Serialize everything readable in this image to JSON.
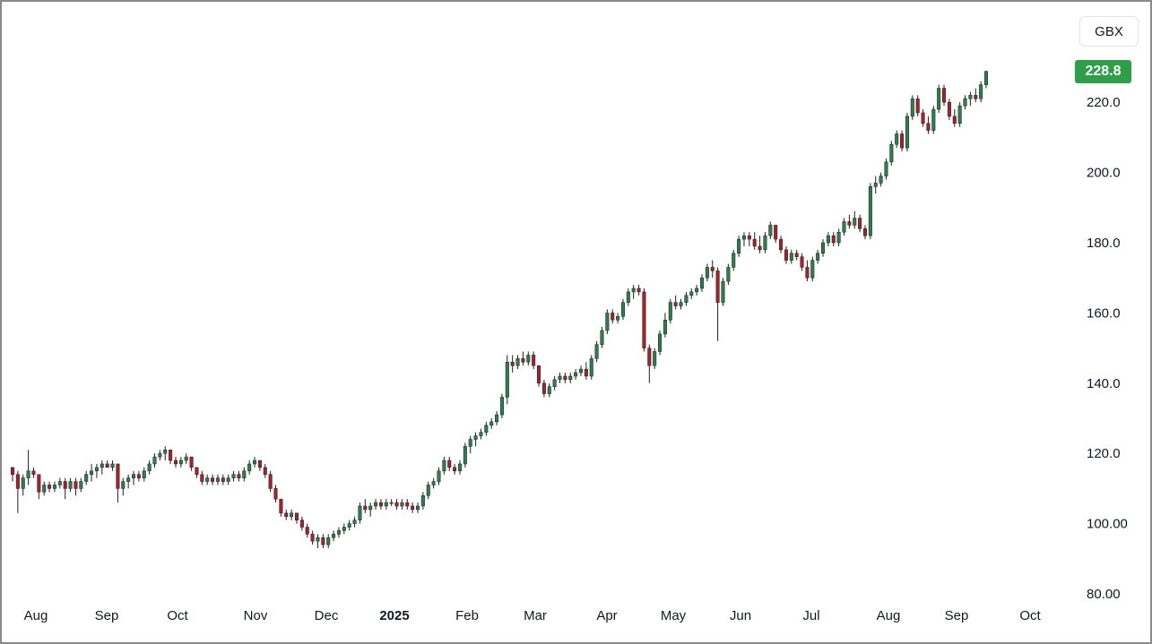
{
  "currency": "GBX",
  "last_price": "228.8",
  "colors": {
    "up": "#2e7d4f",
    "down": "#a3222b",
    "last_bg": "#2e9e48",
    "axis_text": "#131722"
  },
  "chart_data": {
    "type": "candlestick",
    "title": "",
    "xlabel": "",
    "ylabel": "",
    "ylim": [
      80,
      235
    ],
    "y_ticks": [
      "220.0",
      "200.0",
      "180.0",
      "160.0",
      "140.0",
      "120.0",
      "100.00",
      "80.00"
    ],
    "x_ticks": [
      "Aug",
      "Sep",
      "Oct",
      "Nov",
      "Dec",
      "2025",
      "Feb",
      "Mar",
      "Apr",
      "May",
      "Jun",
      "Jul",
      "Aug",
      "Sep",
      "Oct"
    ],
    "bold_tick": "2025",
    "series": [
      {
        "values": [
          [
            116,
            116,
            112,
            114
          ],
          [
            114,
            115,
            103,
            110
          ],
          [
            110,
            114,
            108,
            113
          ],
          [
            113,
            121,
            111,
            115
          ],
          [
            115,
            116,
            113,
            114
          ],
          [
            114,
            114,
            107,
            109
          ],
          [
            109,
            112,
            108,
            111
          ],
          [
            111,
            112,
            109,
            110
          ],
          [
            110,
            112,
            109,
            111
          ],
          [
            111,
            113,
            110,
            112
          ],
          [
            112,
            113,
            107,
            110
          ],
          [
            110,
            113,
            109,
            112
          ],
          [
            112,
            113,
            108,
            110
          ],
          [
            110,
            113,
            109,
            112
          ],
          [
            112,
            115,
            111,
            114
          ],
          [
            114,
            117,
            112,
            115
          ],
          [
            115,
            117,
            113,
            116
          ],
          [
            116,
            118,
            114,
            117
          ],
          [
            117,
            118,
            116,
            116
          ],
          [
            116,
            118,
            115,
            117
          ],
          [
            117,
            117,
            106,
            110
          ],
          [
            110,
            113,
            108,
            112
          ],
          [
            112,
            114,
            110,
            113
          ],
          [
            113,
            115,
            111,
            114
          ],
          [
            114,
            115,
            112,
            113
          ],
          [
            113,
            116,
            112,
            115
          ],
          [
            115,
            118,
            114,
            117
          ],
          [
            117,
            120,
            116,
            119
          ],
          [
            119,
            121,
            118,
            120
          ],
          [
            120,
            122,
            118,
            121
          ],
          [
            121,
            121,
            117,
            118
          ],
          [
            118,
            119,
            116,
            117
          ],
          [
            117,
            119,
            116,
            118
          ],
          [
            118,
            120,
            117,
            119
          ],
          [
            119,
            119,
            115,
            116
          ],
          [
            116,
            116,
            113,
            114
          ],
          [
            114,
            115,
            111,
            112
          ],
          [
            112,
            114,
            111,
            113
          ],
          [
            113,
            114,
            111,
            112
          ],
          [
            112,
            114,
            111,
            113
          ],
          [
            113,
            114,
            111,
            112
          ],
          [
            112,
            114,
            111,
            113
          ],
          [
            113,
            115,
            112,
            114
          ],
          [
            114,
            115,
            112,
            113
          ],
          [
            113,
            116,
            112,
            115
          ],
          [
            115,
            118,
            114,
            117
          ],
          [
            117,
            119,
            116,
            118
          ],
          [
            118,
            118,
            115,
            116
          ],
          [
            116,
            117,
            113,
            114
          ],
          [
            114,
            115,
            109,
            110
          ],
          [
            110,
            111,
            106,
            107
          ],
          [
            107,
            107,
            102,
            103
          ],
          [
            103,
            104,
            101,
            102
          ],
          [
            102,
            104,
            101,
            103
          ],
          [
            103,
            103,
            100,
            101
          ],
          [
            101,
            102,
            98,
            99
          ],
          [
            99,
            100,
            96,
            97
          ],
          [
            97,
            98,
            94,
            95
          ],
          [
            95,
            97,
            93,
            96
          ],
          [
            96,
            97,
            93,
            94
          ],
          [
            94,
            97,
            93,
            96
          ],
          [
            96,
            98,
            95,
            97
          ],
          [
            97,
            99,
            96,
            98
          ],
          [
            98,
            100,
            97,
            99
          ],
          [
            99,
            101,
            98,
            100
          ],
          [
            100,
            102,
            99,
            101
          ],
          [
            101,
            106,
            100,
            105
          ],
          [
            105,
            107,
            103,
            104
          ],
          [
            104,
            106,
            102,
            105
          ],
          [
            105,
            107,
            104,
            106
          ],
          [
            106,
            107,
            104,
            105
          ],
          [
            105,
            107,
            104,
            106
          ],
          [
            106,
            107,
            105,
            106
          ],
          [
            106,
            107,
            104,
            105
          ],
          [
            105,
            107,
            104,
            106
          ],
          [
            106,
            107,
            104,
            105
          ],
          [
            105,
            106,
            103,
            104
          ],
          [
            104,
            106,
            103,
            105
          ],
          [
            105,
            109,
            104,
            108
          ],
          [
            108,
            112,
            107,
            111
          ],
          [
            111,
            113,
            110,
            112
          ],
          [
            112,
            116,
            111,
            115
          ],
          [
            115,
            119,
            114,
            118
          ],
          [
            118,
            119,
            115,
            116
          ],
          [
            116,
            117,
            114,
            115
          ],
          [
            115,
            118,
            114,
            117
          ],
          [
            117,
            123,
            116,
            122
          ],
          [
            122,
            125,
            120,
            124
          ],
          [
            124,
            126,
            122,
            125
          ],
          [
            125,
            127,
            124,
            126
          ],
          [
            126,
            129,
            125,
            128
          ],
          [
            128,
            130,
            127,
            129
          ],
          [
            129,
            132,
            128,
            131
          ],
          [
            131,
            137,
            130,
            136
          ],
          [
            136,
            148,
            134,
            146
          ],
          [
            146,
            148,
            143,
            145
          ],
          [
            145,
            148,
            144,
            147
          ],
          [
            147,
            149,
            145,
            146
          ],
          [
            146,
            149,
            145,
            148
          ],
          [
            148,
            149,
            144,
            145
          ],
          [
            145,
            145,
            139,
            140
          ],
          [
            140,
            141,
            136,
            137
          ],
          [
            137,
            140,
            136,
            139
          ],
          [
            139,
            142,
            138,
            141
          ],
          [
            141,
            143,
            140,
            142
          ],
          [
            142,
            143,
            140,
            141
          ],
          [
            141,
            143,
            140,
            142
          ],
          [
            142,
            144,
            141,
            143
          ],
          [
            143,
            145,
            142,
            144
          ],
          [
            144,
            146,
            141,
            142
          ],
          [
            142,
            148,
            141,
            147
          ],
          [
            147,
            152,
            146,
            151
          ],
          [
            151,
            156,
            150,
            155
          ],
          [
            155,
            161,
            154,
            160
          ],
          [
            160,
            161,
            157,
            158
          ],
          [
            158,
            160,
            157,
            159
          ],
          [
            159,
            164,
            158,
            163
          ],
          [
            163,
            167,
            162,
            166
          ],
          [
            166,
            168,
            164,
            167
          ],
          [
            167,
            168,
            165,
            166
          ],
          [
            166,
            167,
            149,
            150
          ],
          [
            150,
            151,
            140,
            145
          ],
          [
            145,
            150,
            144,
            149
          ],
          [
            149,
            155,
            148,
            154
          ],
          [
            154,
            160,
            153,
            158
          ],
          [
            158,
            164,
            157,
            163
          ],
          [
            163,
            165,
            161,
            162
          ],
          [
            162,
            164,
            161,
            163
          ],
          [
            163,
            166,
            162,
            165
          ],
          [
            165,
            167,
            164,
            166
          ],
          [
            166,
            168,
            165,
            167
          ],
          [
            167,
            171,
            166,
            170
          ],
          [
            170,
            174,
            169,
            173
          ],
          [
            173,
            175,
            170,
            172
          ],
          [
            172,
            173,
            152,
            163
          ],
          [
            163,
            170,
            162,
            169
          ],
          [
            169,
            174,
            168,
            173
          ],
          [
            173,
            178,
            172,
            177
          ],
          [
            177,
            182,
            176,
            181
          ],
          [
            181,
            183,
            179,
            182
          ],
          [
            182,
            183,
            179,
            181
          ],
          [
            181,
            183,
            178,
            179
          ],
          [
            179,
            182,
            177,
            178
          ],
          [
            178,
            183,
            177,
            182
          ],
          [
            182,
            186,
            181,
            185
          ],
          [
            185,
            185,
            180,
            181
          ],
          [
            181,
            182,
            177,
            178
          ],
          [
            178,
            179,
            174,
            175
          ],
          [
            175,
            178,
            174,
            177
          ],
          [
            177,
            178,
            175,
            176
          ],
          [
            176,
            177,
            172,
            173
          ],
          [
            173,
            175,
            169,
            170
          ],
          [
            170,
            176,
            169,
            175
          ],
          [
            175,
            178,
            174,
            177
          ],
          [
            177,
            181,
            176,
            180
          ],
          [
            180,
            183,
            179,
            182
          ],
          [
            182,
            183,
            179,
            180
          ],
          [
            180,
            184,
            179,
            183
          ],
          [
            183,
            187,
            182,
            186
          ],
          [
            186,
            188,
            184,
            185
          ],
          [
            185,
            189,
            184,
            187
          ],
          [
            187,
            188,
            183,
            184
          ],
          [
            184,
            185,
            181,
            182
          ],
          [
            182,
            197,
            181,
            196
          ],
          [
            196,
            199,
            194,
            197
          ],
          [
            197,
            200,
            196,
            199
          ],
          [
            199,
            204,
            198,
            203
          ],
          [
            203,
            209,
            202,
            208
          ],
          [
            208,
            212,
            207,
            211
          ],
          [
            211,
            212,
            206,
            207
          ],
          [
            207,
            217,
            206,
            216
          ],
          [
            216,
            222,
            215,
            221
          ],
          [
            221,
            222,
            216,
            217
          ],
          [
            217,
            218,
            213,
            214
          ],
          [
            214,
            216,
            211,
            212
          ],
          [
            212,
            219,
            211,
            218
          ],
          [
            218,
            225,
            217,
            224
          ],
          [
            224,
            225,
            219,
            220
          ],
          [
            220,
            221,
            215,
            216
          ],
          [
            216,
            218,
            213,
            214
          ],
          [
            214,
            220,
            213,
            219
          ],
          [
            219,
            222,
            218,
            221
          ],
          [
            221,
            223,
            219,
            222
          ],
          [
            222,
            224,
            220,
            221
          ],
          [
            221,
            226,
            220,
            225
          ],
          [
            225,
            229,
            224,
            228.8
          ]
        ]
      }
    ]
  }
}
